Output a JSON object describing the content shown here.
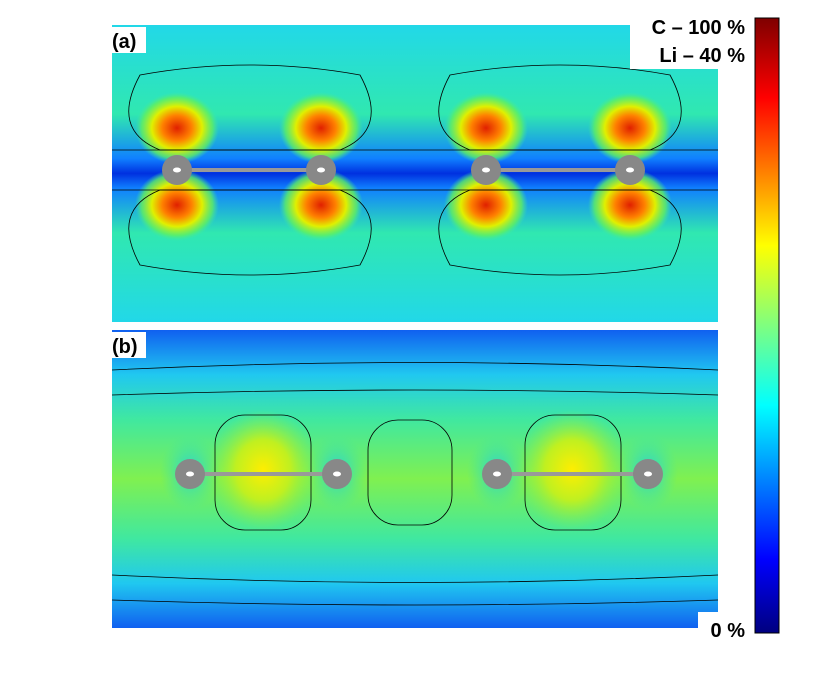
{
  "panels": [
    {
      "label": "(a)"
    },
    {
      "label": "(b)"
    }
  ],
  "colorbar": {
    "top_labels": [
      "C – 100 %",
      "Li – 40 %"
    ],
    "bottom_label": "0 %"
  }
}
